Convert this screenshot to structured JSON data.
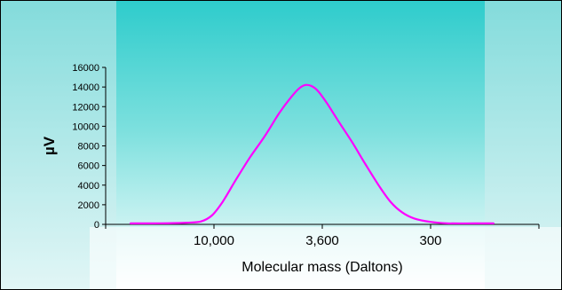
{
  "chart_data": {
    "type": "line",
    "title": "",
    "xlabel": "Molecular mass (Daltons)",
    "ylabel": "µV",
    "ylim": [
      0,
      16000
    ],
    "yticks": [
      0,
      2000,
      4000,
      6000,
      8000,
      10000,
      12000,
      14000,
      16000
    ],
    "xlim": [
      0,
      4
    ],
    "xticks": [
      {
        "value": 1,
        "label": "10,000"
      },
      {
        "value": 2,
        "label": "3,600"
      },
      {
        "value": 3,
        "label": "300"
      }
    ],
    "grid": false,
    "legend": "none",
    "series": [
      {
        "color": "#ff00ff",
        "points": [
          [
            0.23,
            100
          ],
          [
            0.5,
            110
          ],
          [
            0.75,
            170
          ],
          [
            0.88,
            300
          ],
          [
            0.98,
            900
          ],
          [
            1.08,
            2300
          ],
          [
            1.2,
            4500
          ],
          [
            1.33,
            6800
          ],
          [
            1.47,
            9000
          ],
          [
            1.6,
            11300
          ],
          [
            1.7,
            12800
          ],
          [
            1.78,
            13800
          ],
          [
            1.84,
            14200
          ],
          [
            1.9,
            14100
          ],
          [
            1.96,
            13600
          ],
          [
            2.04,
            12400
          ],
          [
            2.15,
            10500
          ],
          [
            2.28,
            8300
          ],
          [
            2.4,
            6100
          ],
          [
            2.52,
            4000
          ],
          [
            2.63,
            2300
          ],
          [
            2.74,
            1200
          ],
          [
            2.85,
            600
          ],
          [
            3.0,
            250
          ],
          [
            3.15,
            110
          ],
          [
            3.4,
            100
          ],
          [
            3.58,
            100
          ]
        ]
      }
    ],
    "colors": {
      "background_top": "#2ecccc",
      "background_bottom": "#ffffff",
      "line": "#ff00ff",
      "axis": "#000000"
    }
  }
}
